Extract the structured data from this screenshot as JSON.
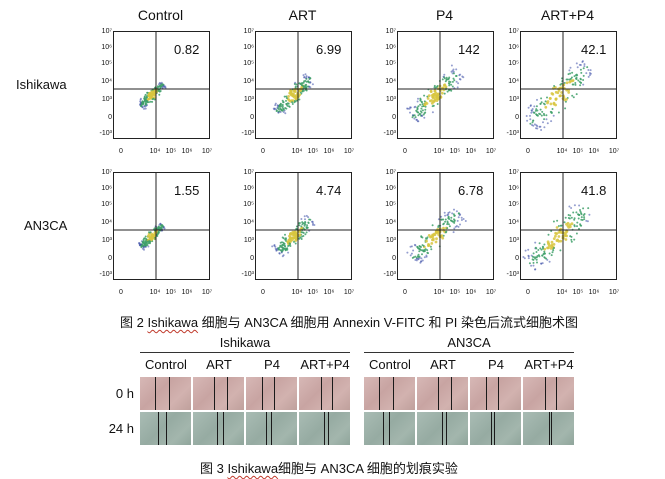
{
  "figure2": {
    "columns": [
      "Control",
      "ART",
      "P4",
      "ART+P4"
    ],
    "rows": [
      {
        "label": "Ishikawa",
        "values": [
          "0.82",
          "6.99",
          "142",
          "42.1"
        ]
      },
      {
        "label": "AN3CA",
        "values": [
          "1.55",
          "4.74",
          "6.78",
          "41.8"
        ]
      }
    ],
    "y_ticks": [
      "10⁷",
      "10⁶",
      "10⁵",
      "10⁴",
      "10³",
      "0",
      "-10³"
    ],
    "x_ticks": [
      "0",
      "10⁴",
      "10⁵",
      "10⁶",
      "10⁷"
    ],
    "caption_label": "图 2",
    "caption_cell": "Ishikawa",
    "caption_mid": " 细胞与 AN3CA 细胞用 Annexin V-FITC 和 PI 染色后流式细胞术图"
  },
  "figure3": {
    "groups": [
      "Ishikawa",
      "AN3CA"
    ],
    "columns": [
      "Control",
      "ART",
      "P4",
      "ART+P4"
    ],
    "times": [
      "0 h",
      "24 h"
    ],
    "caption_label": "图 3",
    "caption_cell": "Ishikawa",
    "caption_mid": "细胞与 AN3CA 细胞的划痕实验"
  },
  "colors": {
    "density_low": "#3d4fa8",
    "density_mid": "#3fa06a",
    "density_high": "#d8c640"
  }
}
